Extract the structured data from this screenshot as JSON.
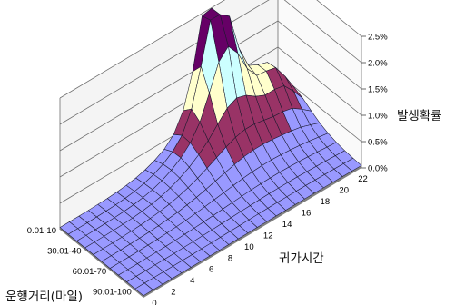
{
  "chart_data": {
    "type": "surface",
    "x_axis": {
      "title": "귀가시간",
      "ticks": [
        "0",
        "2",
        "4",
        "6",
        "8",
        "10",
        "12",
        "14",
        "16",
        "18",
        "20",
        "22"
      ]
    },
    "y_axis": {
      "title": "운행거리(마일)",
      "ticks": [
        "0.01-10",
        "30.01-40",
        "60.01-70",
        "90.01-100"
      ]
    },
    "z_axis": {
      "title": "발생확률",
      "ticks": [
        "0.0%",
        "0.5%",
        "1.0%",
        "1.5%",
        "2.0%",
        "2.5%"
      ],
      "range": [
        0,
        2.5
      ],
      "unit": "%"
    },
    "color_bands": [
      {
        "range": "0.0%-0.5%",
        "color": "#9999ff"
      },
      {
        "range": "0.5%-1.0%",
        "color": "#993366"
      },
      {
        "range": "1.0%-1.5%",
        "color": "#ffffcc"
      },
      {
        "range": "1.5%-2.0%",
        "color": "#ccffff"
      },
      {
        "range": "2.0%-2.5%",
        "color": "#660066"
      }
    ],
    "floor_color": "#808080",
    "gridlines": true
  }
}
